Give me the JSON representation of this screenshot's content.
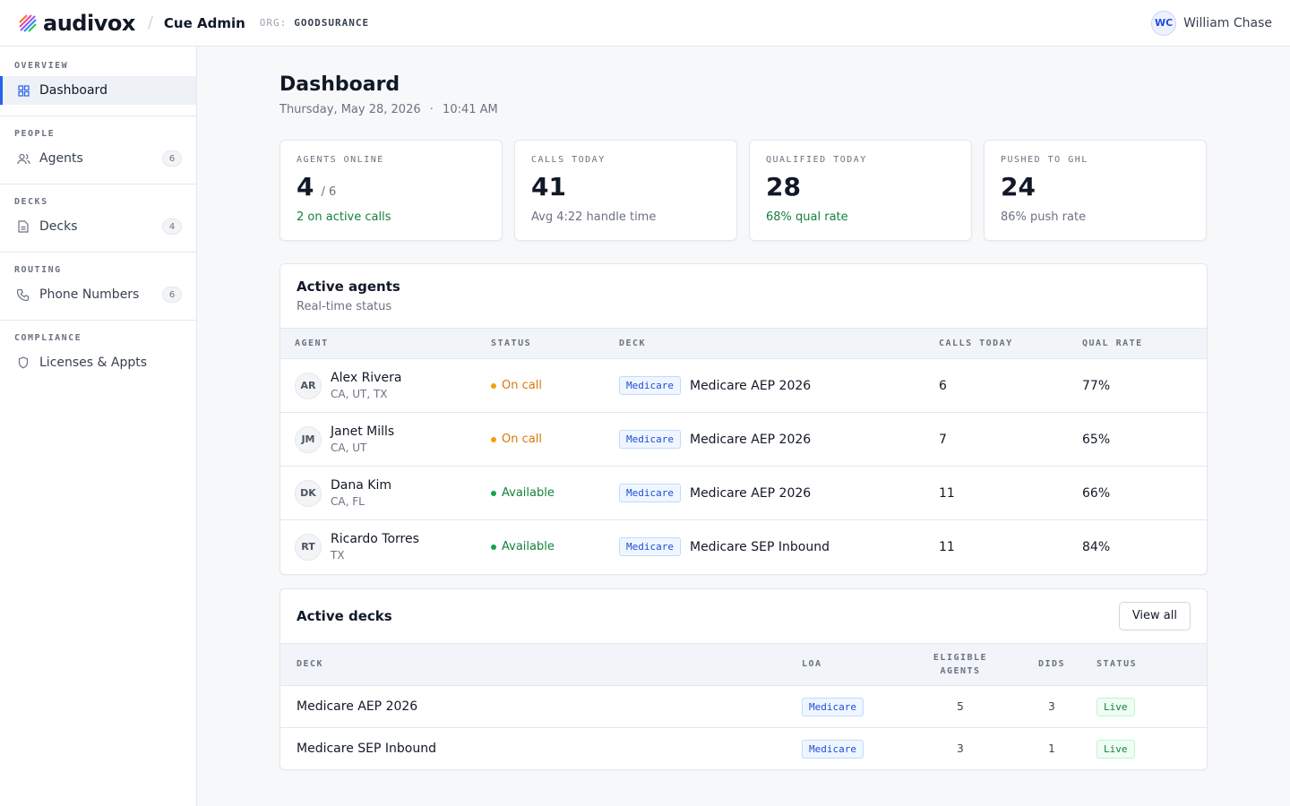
{
  "topbar": {
    "brand": "audivox",
    "app_name": "Cue Admin",
    "org_label": "ORG:",
    "org_name": "GOODSURANCE",
    "user_initials": "WC",
    "user_name": "William Chase"
  },
  "sidebar": {
    "sections": [
      {
        "heading": "OVERVIEW",
        "item": {
          "label": "Dashboard",
          "icon": "grid-icon",
          "active": true
        }
      },
      {
        "heading": "PEOPLE",
        "item": {
          "label": "Agents",
          "icon": "users-icon",
          "count": "6"
        }
      },
      {
        "heading": "DECKS",
        "item": {
          "label": "Decks",
          "icon": "document-icon",
          "count": "4"
        }
      },
      {
        "heading": "ROUTING",
        "item": {
          "label": "Phone Numbers",
          "icon": "phone-icon",
          "count": "6"
        }
      },
      {
        "heading": "COMPLIANCE",
        "item": {
          "label": "Licenses & Appts",
          "icon": "shield-icon"
        }
      }
    ]
  },
  "page": {
    "title": "Dashboard",
    "date": "Thursday, May 28, 2026",
    "dot": "·",
    "time": "10:41 AM"
  },
  "stats": [
    {
      "label": "AGENTS ONLINE",
      "value": "4",
      "of": "/ 6",
      "note": "2 on active calls"
    },
    {
      "label": "CALLS TODAY",
      "value": "41",
      "note": "Avg 4:22 handle time"
    },
    {
      "label": "QUALIFIED TODAY",
      "value": "28",
      "note": "68% qual rate"
    },
    {
      "label": "PUSHED TO GHL",
      "value": "24",
      "note": "86% push rate"
    }
  ],
  "active_agents": {
    "title": "Active agents",
    "subtitle": "Real-time status",
    "columns": [
      "AGENT",
      "STATUS",
      "DECK",
      "CALLS TODAY",
      "QUAL RATE"
    ],
    "rows": [
      {
        "initials": "AR",
        "name": "Alex Rivera",
        "states": "CA, UT, TX",
        "status": "On call",
        "tag": "Medicare",
        "deck": "Medicare AEP 2026",
        "calls": "6",
        "qual": "77%"
      },
      {
        "initials": "JM",
        "name": "Janet Mills",
        "states": "CA, UT",
        "status": "On call",
        "tag": "Medicare",
        "deck": "Medicare AEP 2026",
        "calls": "7",
        "qual": "65%"
      },
      {
        "initials": "DK",
        "name": "Dana Kim",
        "states": "CA, FL",
        "status": "Available",
        "tag": "Medicare",
        "deck": "Medicare AEP 2026",
        "calls": "11",
        "qual": "66%"
      },
      {
        "initials": "RT",
        "name": "Ricardo Torres",
        "states": "TX",
        "status": "Available",
        "tag": "Medicare",
        "deck": "Medicare SEP Inbound",
        "calls": "11",
        "qual": "84%"
      }
    ]
  },
  "active_decks": {
    "title": "Active decks",
    "view_all": "View all",
    "columns": [
      "DECK",
      "LOA",
      "ELIGIBLE",
      "AGENTS",
      "DIDS",
      "STATUS"
    ],
    "rows": [
      {
        "deck": "Medicare AEP 2026",
        "loa": "Medicare",
        "eligible": "5",
        "dids": "3",
        "status": "Live"
      },
      {
        "deck": "Medicare SEP Inbound",
        "loa": "Medicare",
        "eligible": "3",
        "dids": "1",
        "status": "Live"
      }
    ]
  },
  "colors": {
    "accent": "#2563eb",
    "on_call": "#d97706",
    "available": "#15803d"
  }
}
